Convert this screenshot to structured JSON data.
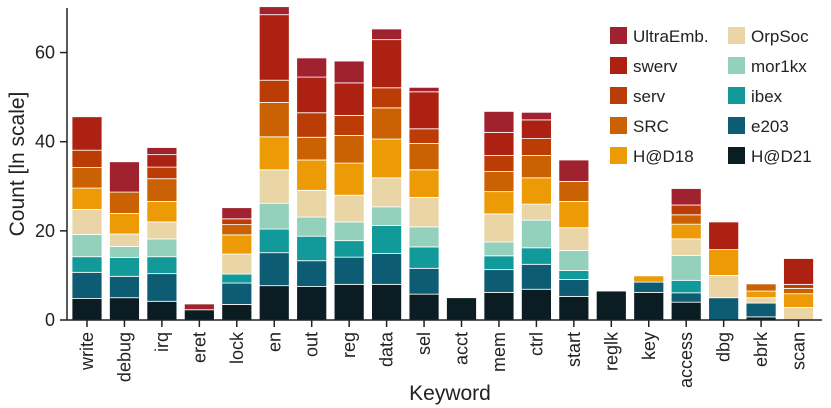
{
  "chart_data": {
    "type": "bar",
    "stacked": true,
    "title": "",
    "xlabel": "Keyword",
    "ylabel": "Count [ln scale]",
    "ylim": [
      0,
      70
    ],
    "yticks": [
      0,
      20,
      40,
      60
    ],
    "grid": false,
    "legend_position": "top-right",
    "categories": [
      "write",
      "debug",
      "irq",
      "eret",
      "lock",
      "en",
      "out",
      "reg",
      "data",
      "sel",
      "acct",
      "mem",
      "ctrl",
      "start",
      "reglk",
      "key",
      "access",
      "dbg",
      "ebrk",
      "scan"
    ],
    "series": [
      {
        "name": "H@D21",
        "color": "#0b1c22",
        "values": [
          4.8,
          5.0,
          4.2,
          2.3,
          3.5,
          7.7,
          7.5,
          8.0,
          8.0,
          5.8,
          5.0,
          6.2,
          6.9,
          5.3,
          6.5,
          6.2,
          4.0,
          0.0,
          0.7,
          0.0
        ]
      },
      {
        "name": "e203",
        "color": "#0d5c73",
        "values": [
          5.9,
          4.8,
          6.2,
          0.0,
          4.8,
          7.4,
          5.8,
          6.1,
          6.9,
          5.8,
          0.0,
          5.1,
          5.6,
          3.8,
          0.0,
          2.3,
          2.1,
          5.0,
          3.1,
          0.0
        ]
      },
      {
        "name": "ibex",
        "color": "#12999a",
        "values": [
          3.5,
          4.2,
          3.8,
          0.0,
          2.0,
          5.3,
          5.5,
          3.7,
          6.3,
          4.8,
          0.0,
          3.1,
          3.7,
          2.0,
          0.0,
          0.0,
          2.8,
          0.0,
          0.0,
          0.0
        ]
      },
      {
        "name": "mor1kx",
        "color": "#93d1bd",
        "values": [
          5.0,
          2.5,
          4.0,
          0.0,
          0.0,
          5.8,
          4.3,
          4.2,
          4.2,
          4.5,
          0.0,
          3.1,
          6.2,
          4.5,
          0.0,
          0.0,
          5.6,
          0.0,
          0.0,
          0.0
        ]
      },
      {
        "name": "OrpSoc",
        "color": "#ead5a6",
        "values": [
          5.6,
          2.8,
          3.8,
          0.0,
          4.5,
          7.5,
          6.0,
          6.0,
          6.5,
          6.6,
          0.0,
          6.3,
          3.6,
          5.1,
          0.0,
          0.0,
          3.7,
          5.0,
          1.2,
          2.8
        ]
      },
      {
        "name": "H@D18",
        "color": "#ec9a06",
        "values": [
          4.8,
          4.6,
          4.6,
          0.0,
          4.3,
          7.4,
          6.8,
          7.2,
          8.7,
          6.2,
          0.0,
          5.0,
          5.9,
          5.9,
          0.0,
          1.4,
          3.3,
          5.8,
          1.5,
          3.1
        ]
      },
      {
        "name": "SRC",
        "color": "#ca6203",
        "values": [
          4.6,
          4.8,
          5.1,
          0.0,
          2.3,
          7.7,
          5.1,
          6.2,
          7.0,
          5.9,
          0.0,
          4.5,
          5.0,
          4.5,
          0.0,
          0.0,
          2.1,
          0.0,
          1.6,
          1.2
        ]
      },
      {
        "name": "serv",
        "color": "#bb3d05",
        "values": [
          3.9,
          0.0,
          2.6,
          0.0,
          1.3,
          5.0,
          5.5,
          4.5,
          4.5,
          3.3,
          0.0,
          3.6,
          3.8,
          0.0,
          0.0,
          0.0,
          2.2,
          0.0,
          0.0,
          0.9
        ]
      },
      {
        "name": "swerv",
        "color": "#ad2112",
        "values": [
          7.5,
          0.0,
          2.8,
          0.0,
          0.0,
          14.7,
          8.0,
          7.3,
          10.8,
          8.3,
          0.0,
          5.2,
          4.2,
          0.0,
          0.0,
          0.0,
          0.0,
          6.2,
          0.0,
          5.8
        ]
      },
      {
        "name": "UltraEmb.",
        "color": "#a1222f",
        "values": [
          0.0,
          6.8,
          1.6,
          1.3,
          2.5,
          1.8,
          4.3,
          4.9,
          2.4,
          1.0,
          0.0,
          4.7,
          1.7,
          4.8,
          0.0,
          0.0,
          3.7,
          0.0,
          0.0,
          0.0
        ]
      }
    ]
  }
}
